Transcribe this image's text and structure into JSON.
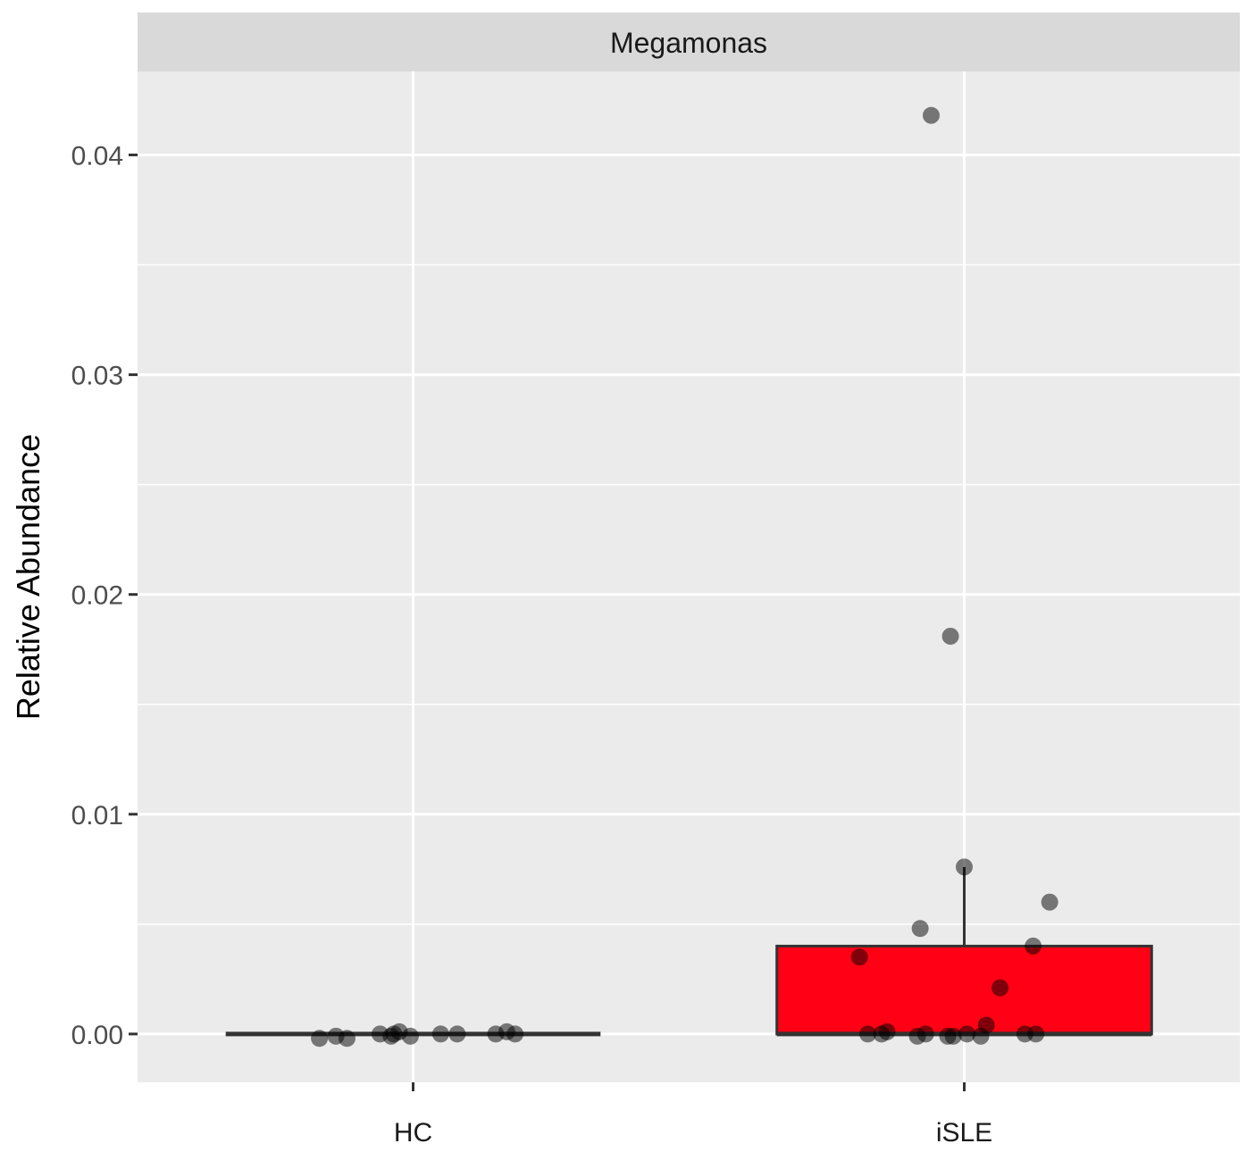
{
  "chart_data": {
    "type": "box",
    "facet_title": "Megamonas",
    "categories": [
      "HC",
      "iSLE"
    ],
    "xlabel": "",
    "ylabel": "Relative Abundance",
    "ylim": [
      -0.0022,
      0.0438
    ],
    "yticks": [
      0.0,
      0.01,
      0.02,
      0.03,
      0.04
    ],
    "ytick_labels": [
      "0.00",
      "0.01",
      "0.02",
      "0.03",
      "0.04"
    ],
    "grid": true,
    "boxes": [
      {
        "category": "HC",
        "min": 0.0,
        "q1": 0.0,
        "median": 0.0,
        "q3": 0.0,
        "max": 0.0,
        "fill": null
      },
      {
        "category": "iSLE",
        "min": 0.0,
        "q1": 0.0,
        "median": 0.0,
        "q3": 0.004,
        "max": 0.0076,
        "fill": "#ff0014"
      }
    ],
    "points": [
      {
        "category": "HC",
        "x_offset": -0.17,
        "y": -0.0002
      },
      {
        "category": "HC",
        "x_offset": -0.14,
        "y": -0.0001
      },
      {
        "category": "HC",
        "x_offset": -0.12,
        "y": -0.0002
      },
      {
        "category": "HC",
        "x_offset": -0.06,
        "y": 0.0
      },
      {
        "category": "HC",
        "x_offset": -0.04,
        "y": -0.0001
      },
      {
        "category": "HC",
        "x_offset": -0.035,
        "y": 0.0
      },
      {
        "category": "HC",
        "x_offset": -0.025,
        "y": 0.0001
      },
      {
        "category": "HC",
        "x_offset": -0.005,
        "y": -0.0001
      },
      {
        "category": "HC",
        "x_offset": 0.05,
        "y": 0.0
      },
      {
        "category": "HC",
        "x_offset": 0.08,
        "y": 0.0
      },
      {
        "category": "HC",
        "x_offset": 0.15,
        "y": 0.0
      },
      {
        "category": "HC",
        "x_offset": 0.17,
        "y": 0.0001
      },
      {
        "category": "HC",
        "x_offset": 0.185,
        "y": 0.0
      },
      {
        "category": "iSLE",
        "x_offset": -0.06,
        "y": 0.0418
      },
      {
        "category": "iSLE",
        "x_offset": -0.025,
        "y": 0.0181
      },
      {
        "category": "iSLE",
        "x_offset": 0.0,
        "y": 0.0076
      },
      {
        "category": "iSLE",
        "x_offset": 0.155,
        "y": 0.006
      },
      {
        "category": "iSLE",
        "x_offset": -0.08,
        "y": 0.0048
      },
      {
        "category": "iSLE",
        "x_offset": 0.125,
        "y": 0.004
      },
      {
        "category": "iSLE",
        "x_offset": -0.19,
        "y": 0.0035
      },
      {
        "category": "iSLE",
        "x_offset": 0.065,
        "y": 0.0021
      },
      {
        "category": "iSLE",
        "x_offset": 0.04,
        "y": 0.0004
      },
      {
        "category": "iSLE",
        "x_offset": -0.175,
        "y": 0.0
      },
      {
        "category": "iSLE",
        "x_offset": -0.15,
        "y": 0.0
      },
      {
        "category": "iSLE",
        "x_offset": -0.14,
        "y": 0.0001
      },
      {
        "category": "iSLE",
        "x_offset": -0.085,
        "y": -0.0001
      },
      {
        "category": "iSLE",
        "x_offset": -0.07,
        "y": 0.0
      },
      {
        "category": "iSLE",
        "x_offset": -0.03,
        "y": -0.0001
      },
      {
        "category": "iSLE",
        "x_offset": -0.02,
        "y": -0.0001
      },
      {
        "category": "iSLE",
        "x_offset": 0.005,
        "y": 0.0
      },
      {
        "category": "iSLE",
        "x_offset": 0.03,
        "y": -0.0001
      },
      {
        "category": "iSLE",
        "x_offset": 0.11,
        "y": 0.0
      },
      {
        "category": "iSLE",
        "x_offset": 0.13,
        "y": 0.0
      }
    ]
  }
}
